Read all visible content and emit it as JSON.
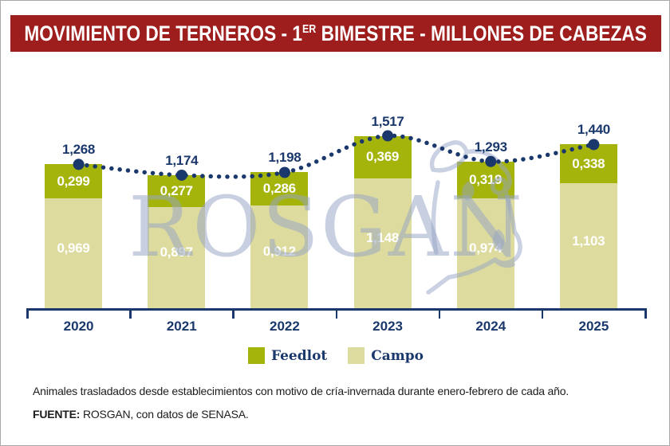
{
  "title": {
    "prefix": "MOVIMIENTO DE TERNEROS - 1",
    "superscript": "ER",
    "suffix": " BIMESTRE - MILLONES DE CABEZAS"
  },
  "colors": {
    "header_bg": "#9e1d1d",
    "navy": "#1a386c",
    "feedlot": "#a5b40b",
    "campo": "#dddc9e",
    "watermark": "#97a5c6",
    "segment_label": "#ffffff"
  },
  "watermark": {
    "text": "ROSGAN",
    "icon": "bull-head-line-art"
  },
  "legend": [
    {
      "label": "Feedlot",
      "color": "#a5b40b"
    },
    {
      "label": "Campo",
      "color": "#dddc9e"
    }
  ],
  "footnote": "Animales trasladados desde establecimientos con motivo de cría-invernada durante enero-febrero de cada año.",
  "source_label": "FUENTE:",
  "source_text": " ROSGAN, con datos de SENASA.",
  "chart_data": {
    "type": "bar",
    "stacked": true,
    "title": "MOVIMIENTO DE TERNEROS - 1ER BIMESTRE - MILLONES DE CABEZAS",
    "unit": "millones de cabezas",
    "categories": [
      "2020",
      "2021",
      "2022",
      "2023",
      "2024",
      "2025"
    ],
    "series": [
      {
        "name": "Feedlot",
        "stack_position": "top",
        "values": [
          0.299,
          0.277,
          0.286,
          0.369,
          0.319,
          0.338
        ],
        "labels": [
          "0,299",
          "0,277",
          "0,286",
          "0,369",
          "0,319",
          "0,338"
        ]
      },
      {
        "name": "Campo",
        "stack_position": "bottom",
        "values": [
          0.969,
          0.897,
          0.912,
          1.148,
          0.974,
          1.103
        ],
        "labels": [
          "0,969",
          "0,897",
          "0,912",
          "1,148",
          "0,974",
          "1,103"
        ]
      }
    ],
    "totals": [
      1.268,
      1.174,
      1.198,
      1.517,
      1.293,
      1.44
    ],
    "total_labels": [
      "1,268",
      "1,174",
      "1,198",
      "1,517",
      "1,293",
      "1,440"
    ],
    "line_overlay": "totals-dotted-line",
    "ylim": [
      0,
      1.6
    ],
    "grid": false,
    "legend_position": "bottom"
  }
}
